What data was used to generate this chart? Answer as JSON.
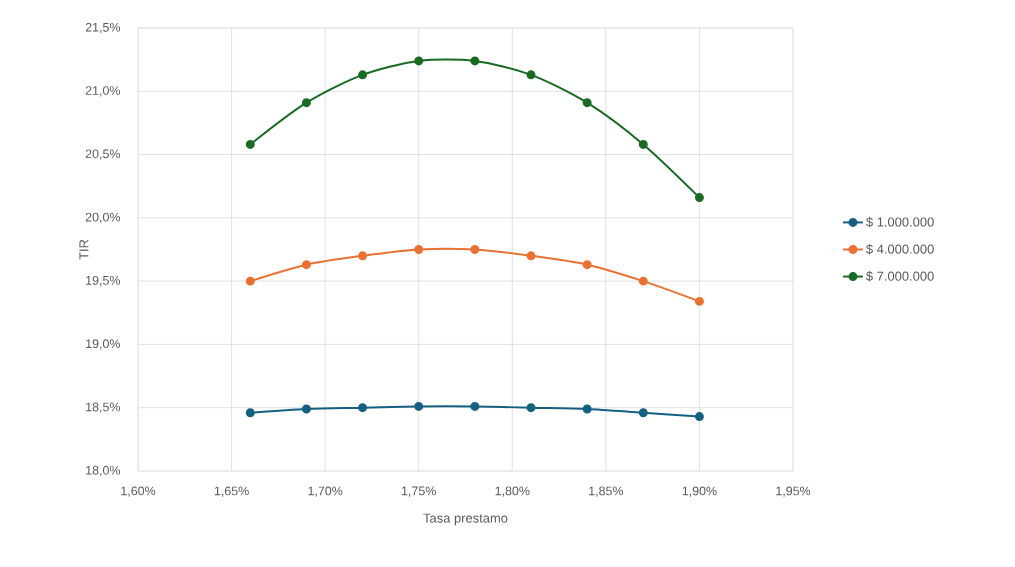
{
  "chart_data": {
    "type": "line",
    "xlabel": "Tasa prestamo",
    "ylabel": "TIR",
    "x": [
      1.66,
      1.69,
      1.72,
      1.75,
      1.78,
      1.81,
      1.84,
      1.87,
      1.9
    ],
    "series": [
      {
        "name": "$ 1.000.000",
        "color": "#156082",
        "values": [
          18.46,
          18.49,
          18.5,
          18.51,
          18.51,
          18.5,
          18.49,
          18.46,
          18.43
        ]
      },
      {
        "name": "$ 4.000.000",
        "color": "#e97132",
        "values": [
          19.5,
          19.63,
          19.7,
          19.75,
          19.75,
          19.7,
          19.63,
          19.5,
          19.34
        ]
      },
      {
        "name": "$ 7.000.000",
        "color": "#196b24",
        "values": [
          20.58,
          20.91,
          21.13,
          21.24,
          21.24,
          21.13,
          20.91,
          20.58,
          20.16
        ]
      }
    ],
    "xlim": [
      1.6,
      1.95
    ],
    "xticks": [
      {
        "value": 1.6,
        "label": "1,60%"
      },
      {
        "value": 1.65,
        "label": "1,65%"
      },
      {
        "value": 1.7,
        "label": "1,70%"
      },
      {
        "value": 1.75,
        "label": "1,75%"
      },
      {
        "value": 1.8,
        "label": "1,80%"
      },
      {
        "value": 1.85,
        "label": "1,85%"
      },
      {
        "value": 1.9,
        "label": "1,90%"
      },
      {
        "value": 1.95,
        "label": "1,95%"
      }
    ],
    "ylim": [
      18,
      21.5
    ],
    "yticks": [
      {
        "value": 18,
        "label": "18,0%"
      },
      {
        "value": 18.5,
        "label": "18,5%"
      },
      {
        "value": 19,
        "label": "19,0%"
      },
      {
        "value": 19.5,
        "label": "19,5%"
      },
      {
        "value": 20,
        "label": "20,0%"
      },
      {
        "value": 20.5,
        "label": "20,5%"
      },
      {
        "value": 21,
        "label": "21,0%"
      },
      {
        "value": 21.5,
        "label": "21,5%"
      }
    ],
    "grid": true,
    "legend": "right",
    "marker": "circle"
  }
}
